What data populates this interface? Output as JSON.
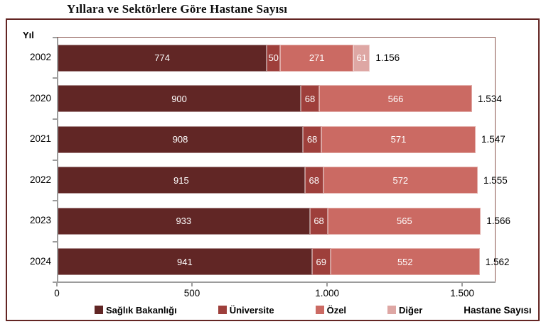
{
  "title": "Yıllara ve Sektörlere Göre Hastane Sayısı",
  "axis": {
    "x_ticks": [
      "0",
      "500",
      "1.000",
      "1.500"
    ],
    "x_tick_values": [
      0,
      500,
      1000,
      1500
    ],
    "x_max": 1618
  },
  "colors": {
    "saglik_bakanligi": "#612625",
    "universite": "#9E3F3B",
    "ozel": "#CB6A63",
    "diger": "#DEA7A4",
    "frame_border": "#632523",
    "plot_border": "#8a564f",
    "axis_line": "#9c9c9c"
  },
  "chart_data": {
    "type": "bar",
    "orientation": "horizontal",
    "stacked": true,
    "grid": false,
    "legend_position": "bottom",
    "title": "Yıllara ve Sektörlere Göre Hastane Sayısı",
    "xlabel": "Hastane Sayısı",
    "ylabel": "Yıl",
    "xlim": [
      0,
      1618
    ],
    "categories": [
      "2002",
      "2020",
      "2021",
      "2022",
      "2023",
      "2024"
    ],
    "series": [
      {
        "name": "Sağlık Bakanlığı",
        "color": "#612625",
        "values": [
          774,
          900,
          908,
          915,
          933,
          941
        ]
      },
      {
        "name": "Üniversite",
        "color": "#9E3F3B",
        "values": [
          50,
          68,
          68,
          68,
          68,
          69
        ]
      },
      {
        "name": "Özel",
        "color": "#CB6A63",
        "values": [
          271,
          566,
          571,
          572,
          565,
          552
        ]
      },
      {
        "name": "Diğer",
        "color": "#DEA7A4",
        "values": [
          61,
          0,
          0,
          0,
          0,
          0
        ]
      }
    ],
    "totals": [
      "1.156",
      "1.534",
      "1.547",
      "1.555",
      "1.566",
      "1.562"
    ]
  }
}
